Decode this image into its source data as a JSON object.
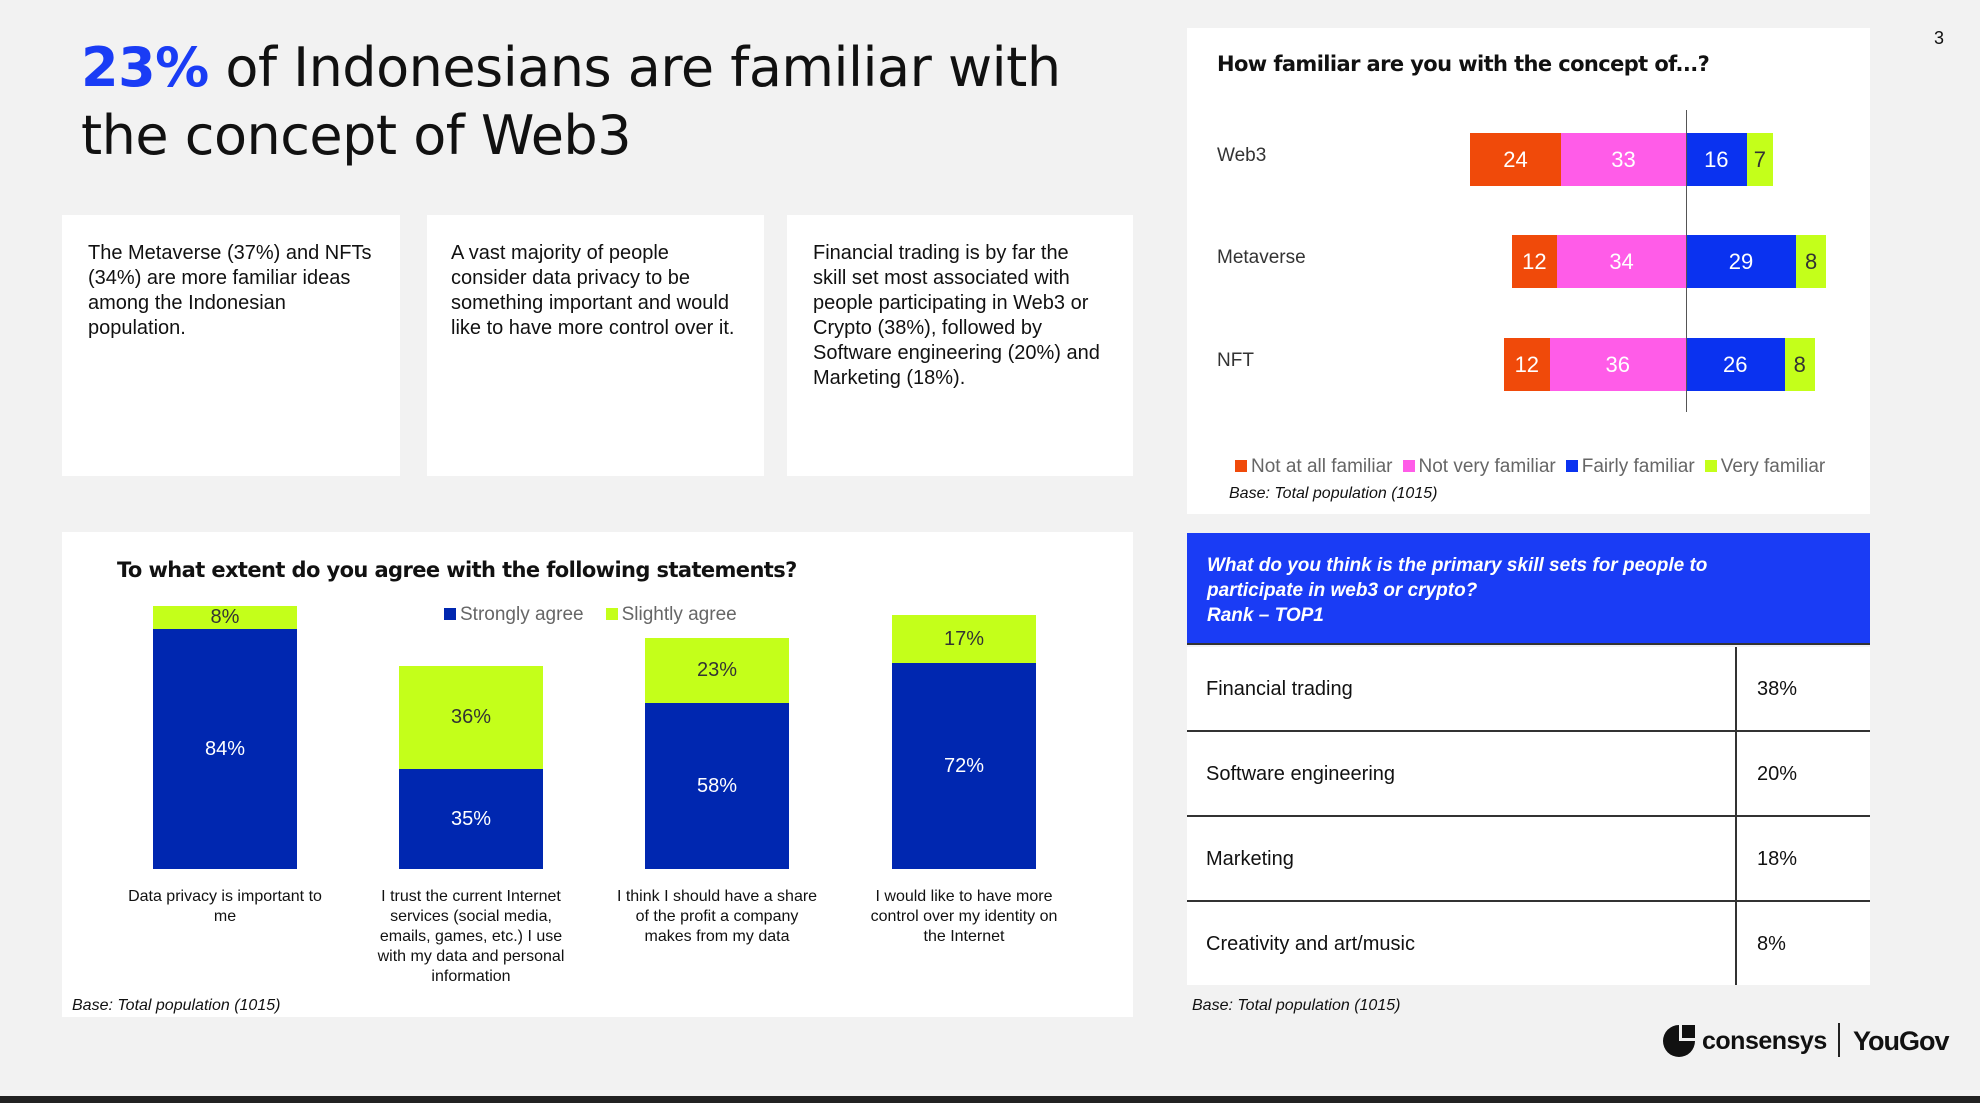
{
  "page_number": "3",
  "headline": {
    "highlight": "23%",
    "rest": " of Indonesians are familiar with the concept of Web3"
  },
  "insights": [
    "The Metaverse (37%) and NFTs (34%) are more familiar ideas among the Indonesian population.",
    "A vast majority of people consider data privacy to be something important and would like to have more control over it.",
    "Financial trading is by far the skill set most associated with people participating in Web3 or Crypto (38%), followed by Software engineering (20%) and Marketing (18%)."
  ],
  "colors": {
    "not_at_all": "#f04a0a",
    "not_very": "#ff5ce8",
    "fairly": "#0a32f0",
    "very": "#c4ff1a",
    "strongly": "#0027b0",
    "slightly": "#c4ff1a",
    "accent": "#1a3cf5"
  },
  "chart_data": [
    {
      "type": "bar",
      "orientation": "horizontal-diverging",
      "title": "How familiar are you with the concept of...?",
      "categories": [
        "Web3",
        "Metaverse",
        "NFT"
      ],
      "series": [
        {
          "name": "Not at all familiar",
          "values": [
            24,
            12,
            12
          ]
        },
        {
          "name": "Not very familiar",
          "values": [
            33,
            34,
            36
          ]
        },
        {
          "name": "Fairly familiar",
          "values": [
            16,
            29,
            26
          ]
        },
        {
          "name": "Very familiar",
          "values": [
            7,
            8,
            8
          ]
        }
      ],
      "legend": "bottom",
      "base": "Base: Total population  (1015)"
    },
    {
      "type": "bar",
      "orientation": "vertical-stacked",
      "title": "To what extent do you agree with the following statements?",
      "categories": [
        "Data privacy is important to me",
        "I trust the current Internet services (social media, emails, games, etc.) I use with my data and personal information",
        "I think I should have a share of the profit a company makes from my data",
        "I would like to have more control over my identity on the Internet"
      ],
      "series": [
        {
          "name": "Strongly agree",
          "values": [
            84,
            35,
            58,
            72
          ]
        },
        {
          "name": "Slightly agree",
          "values": [
            8,
            36,
            23,
            17
          ]
        }
      ],
      "legend": "top",
      "base": "Base: Total population (1015)"
    }
  ],
  "skills_table": {
    "header": [
      "What do you think is the primary skill sets for people to participate in web3 or crypto?",
      "Rank – TOP1"
    ],
    "rows": [
      {
        "skill": "Financial trading",
        "value": "38%"
      },
      {
        "skill": "Software engineering",
        "value": "20%"
      },
      {
        "skill": "Marketing",
        "value": "18%"
      },
      {
        "skill": "Creativity and art/music",
        "value": "8%"
      }
    ],
    "base": "Base: Total population (1015)"
  },
  "logos": {
    "consensys": "consensys",
    "yougov": "YouGov"
  }
}
